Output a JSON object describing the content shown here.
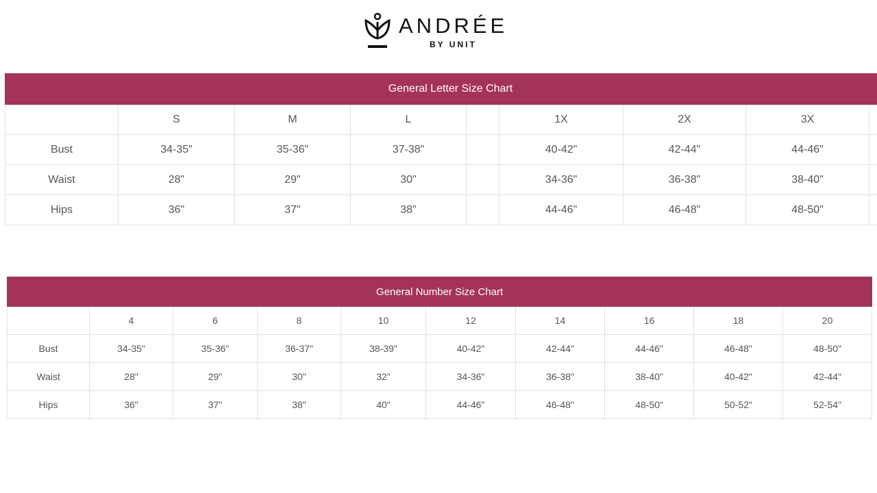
{
  "brand": {
    "name": "ANDRÉE",
    "sub": "BY UNIT"
  },
  "letter_chart": {
    "title": "General Letter Size Chart",
    "columns": [
      "",
      "S",
      "M",
      "L",
      "",
      "1X",
      "2X",
      "3X",
      ""
    ],
    "rows": [
      [
        "Bust",
        "34-35\"",
        "35-36\"",
        "37-38\"",
        "",
        "40-42\"",
        "42-44\"",
        "44-46\"",
        ""
      ],
      [
        "Waist",
        "28\"",
        "29\"",
        "30\"",
        "",
        "34-36\"",
        "36-38\"",
        "38-40\"",
        ""
      ],
      [
        "Hips",
        "36\"",
        "37\"",
        "38\"",
        "",
        "44-46\"",
        "46-48\"",
        "48-50\"",
        ""
      ]
    ]
  },
  "number_chart": {
    "title": "General Number Size Chart",
    "columns": [
      "",
      "4",
      "6",
      "8",
      "10",
      "12",
      "14",
      "16",
      "18",
      "20"
    ],
    "rows": [
      [
        "Bust",
        "34-35\"",
        "35-36\"",
        "36-37\"",
        "38-39\"",
        "40-42\"",
        "42-44\"",
        "44-46\"",
        "46-48\"",
        "48-50\""
      ],
      [
        "Waist",
        "28\"",
        "29\"",
        "30\"",
        "32\"",
        "34-36\"",
        "36-38\"",
        "38-40\"",
        "40-42\"",
        "42-44\""
      ],
      [
        "Hips",
        "36\"",
        "37\"",
        "38\"",
        "40\"",
        "44-46\"",
        "46-48\"",
        "48-50\"",
        "50-52\"",
        "52-54\""
      ]
    ]
  },
  "colors": {
    "header": "#a3335a",
    "text": "#555555",
    "border": "#e2e2e2"
  }
}
